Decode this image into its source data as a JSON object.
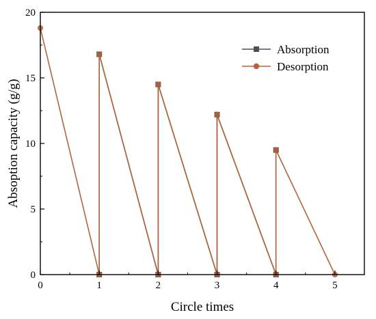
{
  "chart_data": {
    "type": "line",
    "title": "",
    "xlabel": "Circle times",
    "ylabel": "Absoption capacity (g/g)",
    "xlim": [
      0,
      5.5
    ],
    "ylim": [
      0,
      20
    ],
    "xticks": [
      0,
      1,
      2,
      3,
      4,
      5
    ],
    "yticks": [
      0,
      5,
      10,
      15,
      20
    ],
    "xtick_labels": [
      "0",
      "1",
      "2",
      "3",
      "4",
      "5"
    ],
    "ytick_labels": [
      "0",
      "5",
      "10",
      "15",
      "20"
    ],
    "grid": false,
    "legend_position": "top-right",
    "series": [
      {
        "name": "Absorption",
        "color": "#4d4d55",
        "marker": "square",
        "points": [
          [
            1,
            0
          ],
          [
            1,
            16.8
          ],
          [
            2,
            0
          ],
          [
            2,
            14.5
          ],
          [
            3,
            0
          ],
          [
            3,
            12.2
          ],
          [
            4,
            0
          ],
          [
            4,
            9.5
          ]
        ]
      },
      {
        "name": "Desorption",
        "color": "#b4643c",
        "marker": "circle",
        "points": [
          [
            0,
            18.8
          ],
          [
            1,
            0
          ],
          [
            1,
            16.8
          ],
          [
            2,
            0
          ],
          [
            2,
            14.5
          ],
          [
            3,
            0
          ],
          [
            3,
            12.2
          ],
          [
            4,
            0
          ],
          [
            4,
            9.5
          ],
          [
            5,
            0
          ]
        ]
      }
    ]
  }
}
